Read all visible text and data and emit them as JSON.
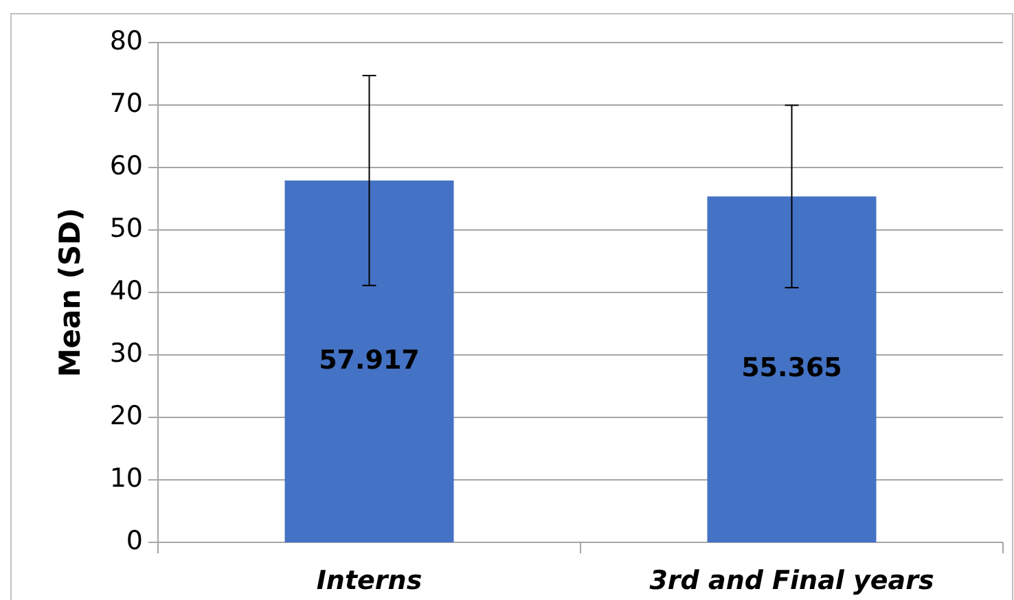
{
  "chart_data": {
    "type": "bar",
    "ylabel": "Mean (SD)",
    "categories": [
      "Interns",
      "3rd and Final years"
    ],
    "values": [
      57.917,
      55.365
    ],
    "errors": [
      16.8,
      14.6
    ],
    "color": "#4472c4",
    "ylim": [
      0,
      80
    ],
    "yticks": [
      0,
      10,
      20,
      30,
      40,
      50,
      60,
      70,
      80
    ],
    "grid": "y",
    "data_labels": true
  }
}
